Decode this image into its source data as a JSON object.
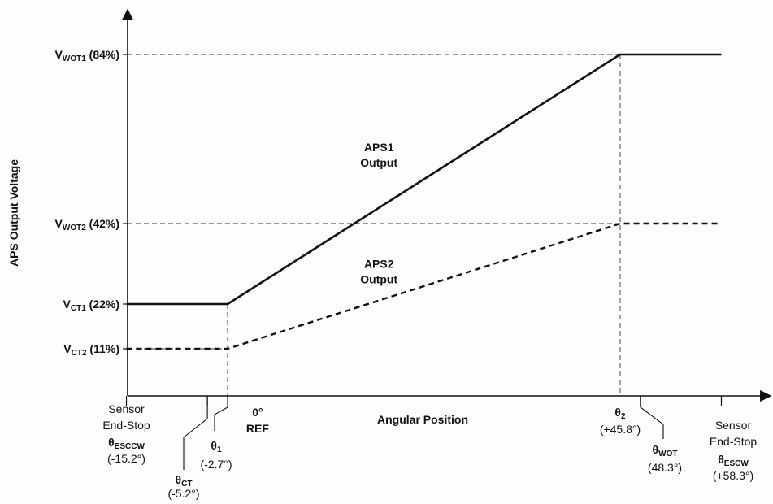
{
  "chart_data": {
    "type": "line",
    "title": "",
    "xlabel": "Angular Position",
    "ylabel": "APS Output Voltage",
    "xlim": [
      -23,
      66
    ],
    "ylim": [
      0,
      100
    ],
    "series": [
      {
        "name_lines": [
          "APS1",
          "Output"
        ],
        "style": "solid",
        "color": "#111111",
        "x": [
          -15.2,
          -2.7,
          45.8,
          58.3
        ],
        "y": [
          22,
          22,
          84,
          84
        ],
        "label_at": [
          16,
          60
        ]
      },
      {
        "name_lines": [
          "APS2",
          "Output"
        ],
        "style": "dashed",
        "color": "#111111",
        "x": [
          -15.2,
          -2.7,
          45.8,
          58.3
        ],
        "y": [
          11,
          11,
          42,
          42
        ],
        "label_at": [
          16,
          31
        ]
      }
    ],
    "y_levels": [
      {
        "main": "V",
        "sub": "WOT1",
        "rest": " (84%)",
        "value": 84
      },
      {
        "main": "V",
        "sub": "WOT2",
        "rest": " (42%)",
        "value": 42
      },
      {
        "main": "V",
        "sub": "CT1",
        "rest": " (22%)",
        "value": 22
      },
      {
        "main": "V",
        "sub": "CT2",
        "rest": " (11%)",
        "value": 11
      }
    ],
    "x_markers": [
      {
        "x": -15.2,
        "lines": [
          "Sensor",
          "End-Stop",
          "θESCCW",
          "(-15.2°)"
        ],
        "symbol": "θ",
        "sub": "ESCCW"
      },
      {
        "x": -5.2,
        "lines": [
          "θCT",
          "(-5.2°)"
        ],
        "symbol": "θ",
        "sub": "CT"
      },
      {
        "x": -2.7,
        "lines": [
          "θ1",
          "(-2.7°)"
        ],
        "symbol": "θ",
        "sub": "1"
      },
      {
        "x": 0,
        "lines": [
          "0°",
          "REF"
        ]
      },
      {
        "x": 45.8,
        "lines": [
          "θ2",
          "(+45.8°)"
        ],
        "symbol": "θ",
        "sub": "2"
      },
      {
        "x": 48.3,
        "lines": [
          "θWOT",
          "(48.3°)"
        ],
        "symbol": "θ",
        "sub": "WOT"
      },
      {
        "x": 58.3,
        "lines": [
          "Sensor",
          "End-Stop",
          "θESCW",
          "(+58.3°)"
        ],
        "symbol": "θ",
        "sub": "ESCW"
      }
    ],
    "grid": false,
    "legend": "none"
  }
}
